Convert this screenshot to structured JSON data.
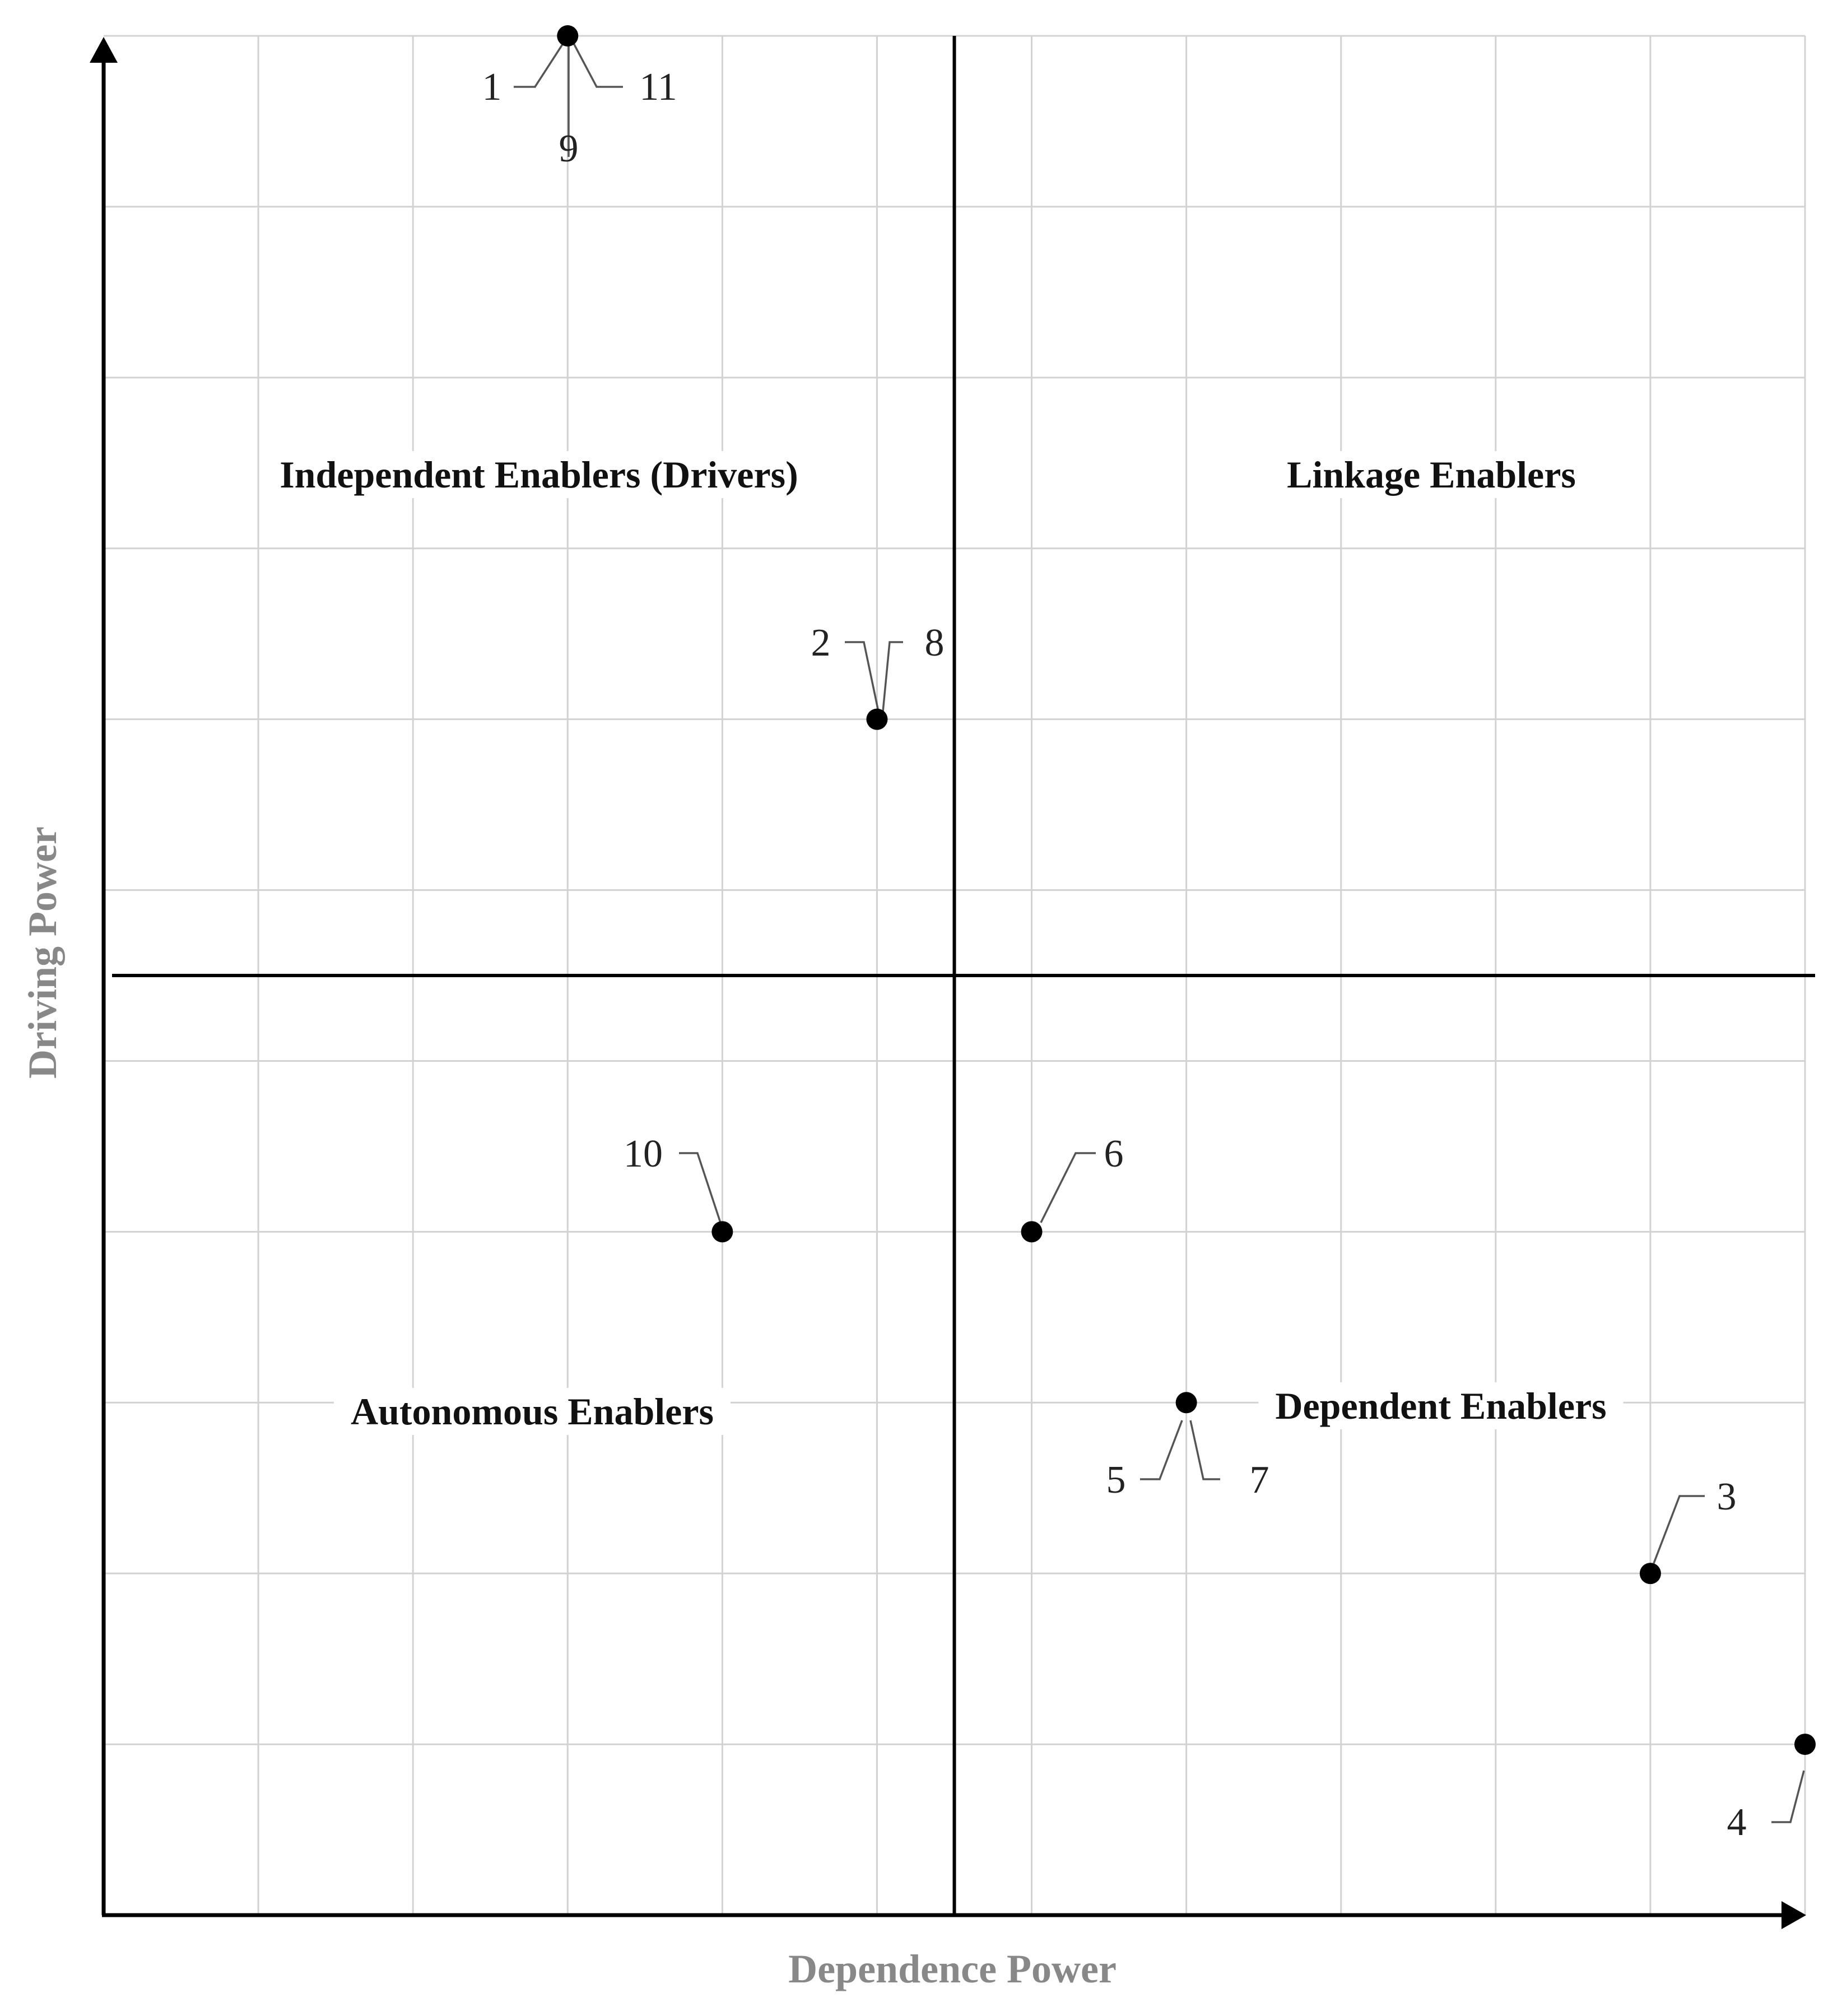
{
  "chart_data": {
    "type": "scatter",
    "xlabel": "Dependence Power",
    "ylabel": "Driving Power",
    "xlim": [
      0,
      11
    ],
    "ylim": [
      0,
      11
    ],
    "divider": {
      "x": 5.5,
      "y": 5.5
    },
    "grid": true,
    "tick_labels_shown": false,
    "quadrants": [
      {
        "id": "independent",
        "label": "Independent Enablers (Drivers)"
      },
      {
        "id": "linkage",
        "label": "Linkage Enablers"
      },
      {
        "id": "autonomous",
        "label": "Autonomous Enablers"
      },
      {
        "id": "dependent",
        "label": "Dependent Enablers"
      }
    ],
    "points": [
      {
        "x": 3,
        "y": 11,
        "labels": [
          "1",
          "9",
          "11"
        ]
      },
      {
        "x": 5,
        "y": 7,
        "labels": [
          "2",
          "8"
        ]
      },
      {
        "x": 10,
        "y": 2,
        "labels": [
          "3"
        ]
      },
      {
        "x": 11,
        "y": 1,
        "labels": [
          "4"
        ]
      },
      {
        "x": 7,
        "y": 3,
        "labels": [
          "5",
          "7"
        ]
      },
      {
        "x": 6,
        "y": 4,
        "labels": [
          "6"
        ]
      },
      {
        "x": 4,
        "y": 4,
        "labels": [
          "10"
        ]
      }
    ]
  }
}
